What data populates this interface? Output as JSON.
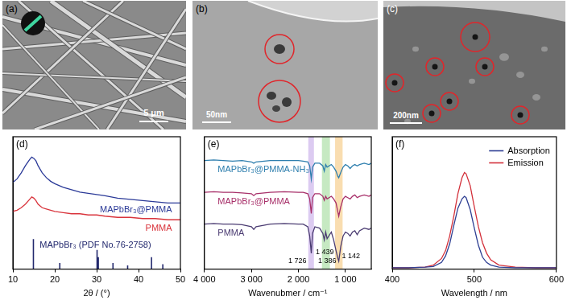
{
  "images": [
    {
      "panel_label": "(a)",
      "scale_bar": "5 μm"
    },
    {
      "panel_label": "(b)",
      "scale_bar": "50nm"
    },
    {
      "panel_label": "(c)",
      "scale_bar": "200nm"
    }
  ],
  "chart_data": [
    {
      "panel_label": "(d)",
      "type": "line",
      "x_label": "2θ / (°)",
      "xlim": [
        10,
        50
      ],
      "xticks": [
        10,
        20,
        30,
        40,
        50
      ],
      "ylim": [
        0,
        110
      ],
      "tick_labels": "x",
      "grid": false,
      "series": [
        {
          "name": "MAPbBr₃@PMMA",
          "color": "#2b3a98",
          "x": [
            10,
            11,
            12,
            13,
            14,
            14.5,
            15,
            15.5,
            16,
            17,
            18,
            19,
            20,
            22,
            24,
            26,
            28,
            30,
            32,
            35,
            38,
            41,
            44,
            47,
            50
          ],
          "values": [
            72,
            75,
            80,
            86,
            91,
            93,
            92,
            90,
            86,
            80,
            76,
            73,
            71,
            68,
            66,
            64,
            63,
            62,
            61,
            59,
            58,
            57,
            56,
            55,
            55
          ]
        },
        {
          "name": "PMMA",
          "color": "#d9343c",
          "x": [
            10,
            11,
            12,
            13,
            14,
            14.5,
            15,
            15.5,
            16,
            17,
            18,
            19,
            20,
            22,
            24,
            26,
            28,
            30,
            32,
            35,
            38,
            41,
            44,
            47,
            50
          ],
          "values": [
            48,
            49,
            51,
            54,
            58,
            60,
            59,
            57,
            54,
            51,
            50,
            49,
            48,
            47,
            46,
            46,
            45,
            45,
            44,
            43,
            43,
            42,
            42,
            41,
            41
          ]
        },
        {
          "name": "MAPbBr₃ (PDF No.76-2758)",
          "type": "bar",
          "color": "#23296e",
          "x": [
            14.9,
            21.2,
            30.1,
            30.4,
            33.9,
            37.4,
            43.1,
            45.8
          ],
          "values": [
            25,
            5,
            16,
            10,
            5,
            3,
            10,
            4
          ]
        }
      ]
    },
    {
      "panel_label": "(e)",
      "type": "line",
      "x_label": "Wavenubmer / cm⁻¹",
      "xlim": [
        4000,
        450
      ],
      "xticks": [
        {
          "value": 4000,
          "label": "4 000"
        },
        {
          "value": 3000,
          "label": "3 000"
        },
        {
          "value": 2000,
          "label": "2 000"
        },
        {
          "value": 1000,
          "label": "1 000"
        }
      ],
      "ylim": [
        0,
        100
      ],
      "tick_labels": "x",
      "grid": false,
      "bands": [
        {
          "from": 1790,
          "to": 1670,
          "color": "#dccbf1"
        },
        {
          "from": 1500,
          "to": 1330,
          "color": "#c6e9c2"
        },
        {
          "from": 1220,
          "to": 1060,
          "color": "#f9ddb0"
        }
      ],
      "annotations": [
        {
          "text": "1 726",
          "x": 1726
        },
        {
          "text": "1 439",
          "x": 1439
        },
        {
          "text": "1 386",
          "x": 1386
        },
        {
          "text": "1 142",
          "x": 1142
        }
      ],
      "x": [
        4000,
        3800,
        3600,
        3400,
        3200,
        3000,
        2950,
        2900,
        2600,
        2300,
        2000,
        1900,
        1800,
        1760,
        1726,
        1700,
        1650,
        1550,
        1480,
        1450,
        1420,
        1390,
        1300,
        1250,
        1200,
        1160,
        1142,
        1100,
        1050,
        1000,
        950,
        900,
        850,
        800,
        750,
        700,
        600,
        500,
        450
      ],
      "series": [
        {
          "name": "MAPbBr₃@PMMA-NH₃",
          "color": "#2f7fae",
          "values": [
            82,
            82.5,
            82,
            81.5,
            82,
            81,
            80,
            81,
            82,
            82,
            82,
            81.5,
            81,
            78,
            68,
            77,
            80,
            80,
            78,
            74,
            79,
            77,
            79,
            77,
            74,
            70,
            69,
            73,
            77,
            79,
            78,
            76,
            78,
            79,
            78,
            79,
            80,
            79,
            80
          ]
        },
        {
          "name": "MAPbBr₃@PMMA",
          "color": "#a8306a",
          "values": [
            58,
            58.5,
            58,
            58,
            57.5,
            57,
            55.5,
            57,
            58,
            58.5,
            58,
            58,
            57,
            53,
            42,
            54,
            57,
            57,
            55,
            52,
            55,
            53,
            55,
            53,
            50,
            43,
            40,
            47,
            53,
            55,
            54,
            53,
            55,
            56,
            54,
            55,
            56,
            55,
            56
          ]
        },
        {
          "name": "PMMA",
          "color": "#4b3c72",
          "values": [
            34,
            34.5,
            34,
            34,
            33.5,
            32,
            30,
            32,
            34,
            34.5,
            34,
            34,
            32,
            25,
            12,
            27,
            32,
            31,
            27,
            22,
            28,
            23,
            28,
            22,
            14,
            8,
            6,
            17,
            25,
            28,
            27,
            25,
            28,
            29,
            26,
            29,
            31,
            30,
            31
          ]
        }
      ]
    },
    {
      "panel_label": "(f)",
      "type": "line",
      "x_label": "Wavelength / nm",
      "xlim": [
        400,
        600
      ],
      "xticks": [
        400,
        500,
        600
      ],
      "ylim": [
        0,
        100
      ],
      "tick_labels": "x",
      "grid": false,
      "legend": "upper right",
      "x": [
        400,
        420,
        440,
        450,
        460,
        465,
        470,
        475,
        480,
        485,
        488,
        490,
        495,
        500,
        505,
        510,
        515,
        520,
        530,
        550,
        575,
        600
      ],
      "series": [
        {
          "name": "Absorption",
          "color": "#2e3f93",
          "values": [
            1,
            1,
            1.5,
            2,
            5,
            10,
            19,
            33,
            46,
            53,
            55,
            54,
            45,
            31,
            18,
            9,
            5,
            3,
            1.5,
            1,
            1,
            1
          ]
        },
        {
          "name": "Emission",
          "color": "#d3313b",
          "values": [
            1,
            1,
            1.5,
            3,
            8,
            14,
            25,
            40,
            57,
            69,
            73,
            72,
            63,
            47,
            32,
            20,
            12,
            7,
            3,
            1.5,
            1,
            1
          ]
        }
      ]
    }
  ]
}
